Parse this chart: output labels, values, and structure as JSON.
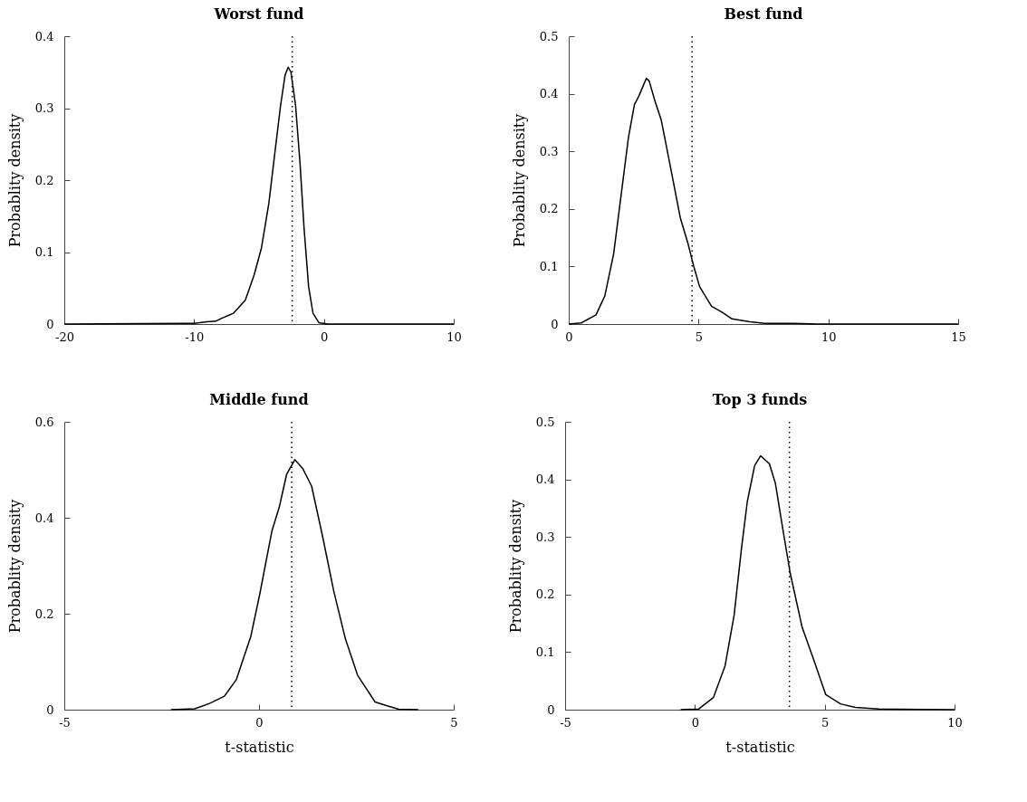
{
  "chart_data": [
    {
      "type": "line",
      "title": "Worst fund",
      "ylabel": "Probablity density",
      "xlim": [
        -20,
        10
      ],
      "xticks": [
        -20,
        -10,
        0,
        10
      ],
      "ylim": [
        0,
        0.4
      ],
      "yticks": [
        0,
        0.1,
        0.2,
        0.3,
        0.4
      ],
      "grid": false,
      "line_style": "solid",
      "series": [
        {
          "color": "#000000",
          "x": [
            -20,
            -11.07,
            -10,
            -9.02,
            -8.34,
            -7.88,
            -6.97,
            -6.06,
            -5.38,
            -4.81,
            -4.24,
            -3.78,
            -3.33,
            -2.99,
            -2.76,
            -2.54,
            -2.19,
            -1.85,
            -1.52,
            -1.18,
            -0.84,
            -0.39,
            0.3,
            10
          ],
          "values": [
            0,
            0.001,
            0.001,
            0.003,
            0.004,
            0.008,
            0.015,
            0.033,
            0.068,
            0.106,
            0.168,
            0.238,
            0.305,
            0.346,
            0.357,
            0.35,
            0.305,
            0.226,
            0.131,
            0.052,
            0.015,
            0.002,
            0,
            0
          ]
        }
      ],
      "ref_lines": [
        {
          "axis": "x",
          "value": -2.44,
          "color": "#000000",
          "line_style": "dotted"
        }
      ]
    },
    {
      "type": "line",
      "title": "Best fund",
      "ylabel": "Probablity density",
      "xlim": [
        0,
        15
      ],
      "xticks": [
        0,
        5,
        10,
        15
      ],
      "ylim": [
        0,
        0.5
      ],
      "yticks": [
        0,
        0.1,
        0.2,
        0.3,
        0.4,
        0.5
      ],
      "grid": false,
      "line_style": "solid",
      "series": [
        {
          "color": "#000000",
          "x": [
            0,
            0.48,
            1.05,
            1.39,
            1.73,
            2.02,
            2.3,
            2.53,
            2.7,
            2.99,
            3.1,
            3.33,
            3.56,
            3.9,
            4.3,
            4.58,
            4.81,
            5.04,
            5.5,
            5.89,
            6.29,
            6.98,
            7.55,
            8.69,
            9.6,
            10,
            15
          ],
          "values": [
            0,
            0.002,
            0.016,
            0.049,
            0.122,
            0.225,
            0.324,
            0.381,
            0.396,
            0.427,
            0.422,
            0.386,
            0.355,
            0.277,
            0.184,
            0.142,
            0.101,
            0.065,
            0.031,
            0.021,
            0.009,
            0.004,
            0.001,
            0.001,
            0,
            0,
            0
          ]
        }
      ],
      "ref_lines": [
        {
          "axis": "x",
          "value": 4.75,
          "color": "#000000",
          "line_style": "dotted"
        }
      ]
    },
    {
      "type": "line",
      "title": "Middle fund",
      "xlabel": "t-statistic",
      "ylabel": "Probablity density",
      "xlim": [
        -5,
        5
      ],
      "xticks": [
        -5,
        0,
        5
      ],
      "ylim": [
        0,
        0.6
      ],
      "yticks": [
        0,
        0.2,
        0.4,
        0.6
      ],
      "grid": false,
      "line_style": "solid",
      "series": [
        {
          "color": "#000000",
          "x": [
            -2.26,
            -1.65,
            -1.27,
            -0.89,
            -0.58,
            -0.21,
            0.02,
            0.33,
            0.52,
            0.71,
            0.92,
            1.12,
            1.35,
            1.62,
            1.92,
            2.22,
            2.53,
            2.98,
            3.29,
            3.59,
            4.09
          ],
          "values": [
            0,
            0.002,
            0.013,
            0.028,
            0.063,
            0.153,
            0.241,
            0.372,
            0.422,
            0.491,
            0.521,
            0.503,
            0.466,
            0.366,
            0.247,
            0.147,
            0.072,
            0.016,
            0.008,
            0.001,
            0
          ]
        }
      ],
      "ref_lines": [
        {
          "axis": "x",
          "value": 0.84,
          "color": "#000000",
          "line_style": "dotted"
        }
      ]
    },
    {
      "type": "line",
      "title": "Top 3 funds",
      "xlabel": "t-statistic",
      "ylabel": "Probablity density",
      "xlim": [
        -5,
        10
      ],
      "xticks": [
        -5,
        0,
        5,
        10
      ],
      "ylim": [
        0,
        0.5
      ],
      "yticks": [
        0,
        0.1,
        0.2,
        0.3,
        0.4,
        0.5
      ],
      "grid": false,
      "line_style": "solid",
      "series": [
        {
          "color": "#000000",
          "x": [
            -0.55,
            0.14,
            0.71,
            1.16,
            1.51,
            1.79,
            2.02,
            2.3,
            2.53,
            2.87,
            3.1,
            3.38,
            3.67,
            4.13,
            4.58,
            5.04,
            5.61,
            6.18,
            7.09,
            10
          ],
          "values": [
            0,
            0.001,
            0.021,
            0.076,
            0.164,
            0.279,
            0.362,
            0.424,
            0.441,
            0.427,
            0.393,
            0.315,
            0.237,
            0.143,
            0.086,
            0.026,
            0.01,
            0.004,
            0.001,
            0
          ]
        }
      ],
      "ref_lines": [
        {
          "axis": "x",
          "value": 3.64,
          "color": "#000000",
          "line_style": "dotted"
        }
      ]
    }
  ]
}
